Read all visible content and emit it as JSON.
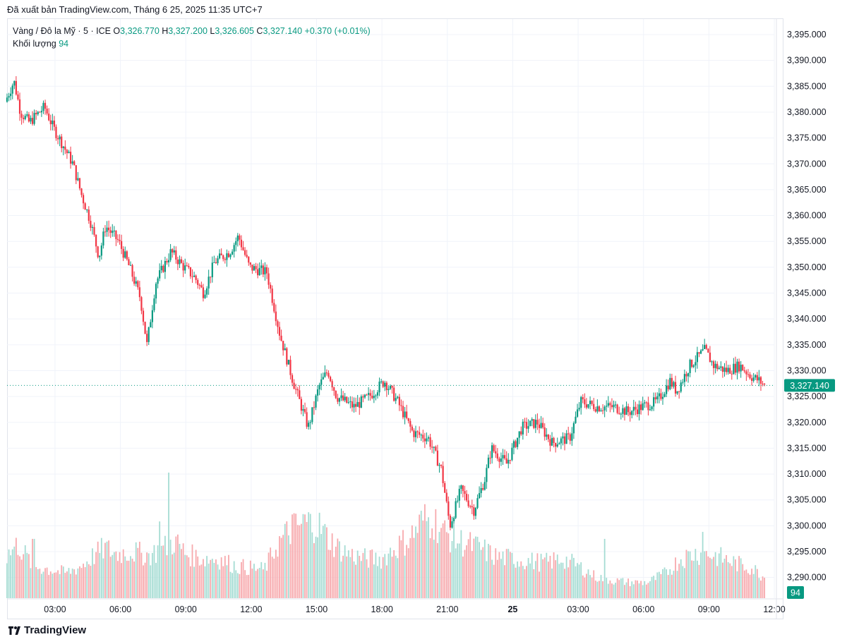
{
  "header": {
    "published": "Đã xuất bản TradingView.com, Tháng 6 25, 2025 11:35 UTC+7"
  },
  "legend": {
    "symbol": "Vàng / Đô la Mỹ · 5 · ICE",
    "o_label": "O",
    "o_value": "3,326.770",
    "h_label": "H",
    "h_value": "3,327.200",
    "l_label": "L",
    "l_value": "3,326.605",
    "c_label": "C",
    "c_value": "3,327.140",
    "change": "+0.370 (+0.01%)",
    "volume_label": "Khối lượng",
    "volume_value": "94"
  },
  "footer": {
    "brand": "TradingView"
  },
  "colors": {
    "up": "#089981",
    "down": "#f23645",
    "up_vol": "#a5dcd3",
    "down_vol": "#f7a9ad",
    "grid": "#f0f3fa"
  },
  "chart_data": {
    "type": "candlestick",
    "symbol": "Vàng / Đô la Mỹ",
    "interval": "5",
    "y_axis": {
      "ticks": [
        "3,290.000",
        "3,295.000",
        "3,300.000",
        "3,305.000",
        "3,310.000",
        "3,315.000",
        "3,320.000",
        "3,325.000",
        "3,330.000",
        "3,335.000",
        "3,340.000",
        "3,345.000",
        "3,350.000",
        "3,355.000",
        "3,360.000",
        "3,365.000",
        "3,370.000",
        "3,375.000",
        "3,380.000",
        "3,385.000",
        "3,390.000",
        "3,395.000"
      ],
      "range": [
        3286.0,
        3398.0
      ]
    },
    "x_axis": {
      "ticks": [
        "03:00",
        "06:00",
        "09:00",
        "12:00",
        "15:00",
        "18:00",
        "21:00",
        "25",
        "03:00",
        "06:00",
        "09:00",
        "12:00"
      ],
      "bold_ticks": [
        "25"
      ],
      "tick_hours": [
        3,
        6,
        9,
        12,
        15,
        18,
        21,
        24,
        27,
        30,
        33,
        36
      ],
      "range_hours": [
        0.8,
        36.0
      ]
    },
    "last_price": {
      "value": 3327.14,
      "label": "3,327.140"
    },
    "last_volume": {
      "value": 94,
      "label": "94"
    },
    "price_path": [
      [
        0.8,
        3382
      ],
      [
        1.2,
        3386
      ],
      [
        1.5,
        3380
      ],
      [
        1.9,
        3378
      ],
      [
        2.6,
        3381
      ],
      [
        3.0,
        3377
      ],
      [
        3.4,
        3374
      ],
      [
        3.9,
        3370
      ],
      [
        4.3,
        3364
      ],
      [
        4.7,
        3359
      ],
      [
        5.1,
        3352
      ],
      [
        5.4,
        3358
      ],
      [
        6.0,
        3355
      ],
      [
        6.5,
        3350
      ],
      [
        7.0,
        3344
      ],
      [
        7.3,
        3335
      ],
      [
        7.7,
        3347
      ],
      [
        8.4,
        3353
      ],
      [
        9.0,
        3350
      ],
      [
        9.5,
        3348
      ],
      [
        9.9,
        3345
      ],
      [
        10.4,
        3351
      ],
      [
        11.1,
        3353
      ],
      [
        11.5,
        3356
      ],
      [
        12.0,
        3350
      ],
      [
        12.8,
        3349
      ],
      [
        13.4,
        3337
      ],
      [
        14.0,
        3328
      ],
      [
        14.7,
        3319
      ],
      [
        15.2,
        3327
      ],
      [
        15.6,
        3330
      ],
      [
        16.0,
        3325
      ],
      [
        16.8,
        3323
      ],
      [
        17.5,
        3325
      ],
      [
        18.2,
        3328
      ],
      [
        18.8,
        3324
      ],
      [
        19.5,
        3318
      ],
      [
        20.2,
        3317
      ],
      [
        20.8,
        3311
      ],
      [
        21.2,
        3300
      ],
      [
        21.7,
        3307
      ],
      [
        22.3,
        3303
      ],
      [
        22.8,
        3309
      ],
      [
        23.1,
        3315
      ],
      [
        23.8,
        3312
      ],
      [
        24.5,
        3319
      ],
      [
        25.2,
        3320
      ],
      [
        25.9,
        3316
      ],
      [
        26.7,
        3317
      ],
      [
        27.2,
        3324
      ],
      [
        28.0,
        3323
      ],
      [
        28.7,
        3323
      ],
      [
        29.4,
        3322
      ],
      [
        30.0,
        3323
      ],
      [
        30.7,
        3324
      ],
      [
        31.3,
        3328
      ],
      [
        31.6,
        3326
      ],
      [
        32.2,
        3331
      ],
      [
        32.9,
        3334
      ],
      [
        33.3,
        3331
      ],
      [
        33.9,
        3330
      ],
      [
        34.5,
        3331
      ],
      [
        35.0,
        3329
      ],
      [
        35.4,
        3328
      ],
      [
        35.7,
        3327
      ]
    ],
    "volume_path": [
      [
        0.8,
        60
      ],
      [
        1.3,
        75
      ],
      [
        2.0,
        45
      ],
      [
        2.8,
        40
      ],
      [
        3.5,
        35
      ],
      [
        4.2,
        45
      ],
      [
        4.8,
        60
      ],
      [
        5.3,
        70
      ],
      [
        5.8,
        62
      ],
      [
        6.5,
        65
      ],
      [
        7.3,
        60
      ],
      [
        8.0,
        70
      ],
      [
        8.5,
        80
      ],
      [
        9.0,
        62
      ],
      [
        9.8,
        55
      ],
      [
        10.5,
        55
      ],
      [
        11.3,
        45
      ],
      [
        12.0,
        42
      ],
      [
        12.6,
        40
      ],
      [
        13.2,
        75
      ],
      [
        13.8,
        95
      ],
      [
        14.5,
        105
      ],
      [
        15.0,
        105
      ],
      [
        15.5,
        85
      ],
      [
        16.0,
        70
      ],
      [
        16.6,
        60
      ],
      [
        17.3,
        55
      ],
      [
        18.0,
        55
      ],
      [
        18.6,
        70
      ],
      [
        19.3,
        85
      ],
      [
        19.9,
        110
      ],
      [
        20.5,
        105
      ],
      [
        20.9,
        90
      ],
      [
        21.5,
        80
      ],
      [
        22.0,
        75
      ],
      [
        22.5,
        70
      ],
      [
        23.2,
        58
      ],
      [
        24.0,
        55
      ],
      [
        24.7,
        52
      ],
      [
        25.5,
        50
      ],
      [
        26.3,
        55
      ],
      [
        27.0,
        45
      ],
      [
        27.8,
        30
      ],
      [
        28.5,
        25
      ],
      [
        29.4,
        22
      ],
      [
        30.2,
        22
      ],
      [
        31.0,
        35
      ],
      [
        31.7,
        55
      ],
      [
        32.3,
        62
      ],
      [
        33.0,
        62
      ],
      [
        33.7,
        55
      ],
      [
        34.3,
        48
      ],
      [
        35.0,
        42
      ],
      [
        35.5,
        30
      ],
      [
        35.8,
        26
      ]
    ],
    "volume_range": [
      0,
      180
    ],
    "marked_volume_spikes": [
      [
        2.0,
        85
      ],
      [
        8.2,
        180
      ],
      [
        7.8,
        110
      ],
      [
        13.9,
        120
      ],
      [
        14.5,
        120
      ],
      [
        20.3,
        100
      ],
      [
        28.2,
        85
      ],
      [
        32.7,
        95
      ]
    ]
  }
}
